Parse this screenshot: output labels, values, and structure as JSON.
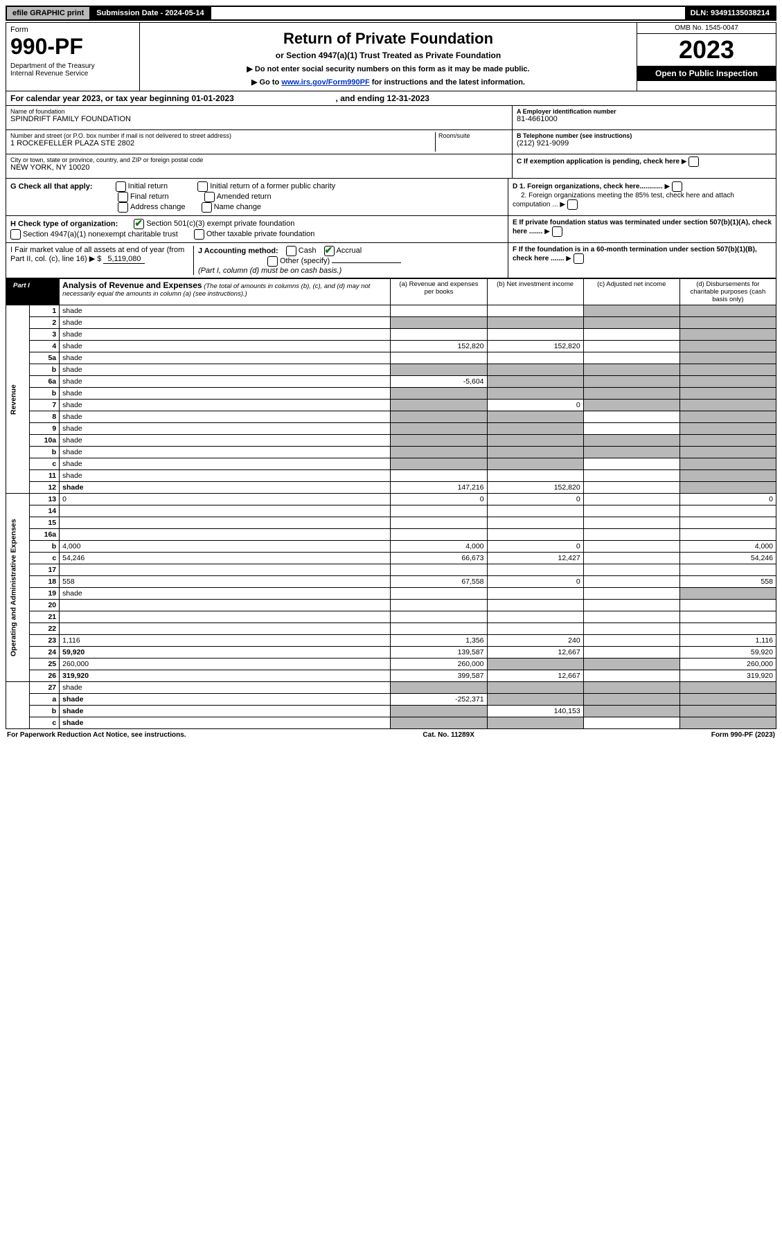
{
  "top_bar": {
    "efile": "efile GRAPHIC print",
    "sub_date_label": "Submission Date - 2024-05-14",
    "dln": "DLN: 93491135038214"
  },
  "header": {
    "form_word": "Form",
    "form_no": "990-PF",
    "dept": "Department of the Treasury\nInternal Revenue Service",
    "title": "Return of Private Foundation",
    "subtitle": "or Section 4947(a)(1) Trust Treated as Private Foundation",
    "instr1": "▶ Do not enter social security numbers on this form as it may be made public.",
    "instr2": "▶ Go to ",
    "instr_link": "www.irs.gov/Form990PF",
    "instr3": " for instructions and the latest information.",
    "omb": "OMB No. 1545-0047",
    "year": "2023",
    "inspect": "Open to Public Inspection"
  },
  "calendar": {
    "text_a": "For calendar year 2023, or tax year beginning ",
    "begin": "01-01-2023",
    "text_b": ", and ending ",
    "end": "12-31-2023"
  },
  "info": {
    "name_label": "Name of foundation",
    "name": "SPINDRIFT FAMILY FOUNDATION",
    "addr_label": "Number and street (or P.O. box number if mail is not delivered to street address)",
    "addr": "1 ROCKEFELLER PLAZA STE 2802",
    "room_label": "Room/suite",
    "city_label": "City or town, state or province, country, and ZIP or foreign postal code",
    "city": "NEW YORK, NY  10020",
    "ein_label": "A Employer identification number",
    "ein": "81-4661000",
    "tel_label": "B Telephone number (see instructions)",
    "tel": "(212) 921-9099",
    "c_label": "C If exemption application is pending, check here",
    "d1": "D 1. Foreign organizations, check here............",
    "d2": "2. Foreign organizations meeting the 85% test, check here and attach computation ...",
    "e_label": "E  If private foundation status was terminated under section 507(b)(1)(A), check here .......",
    "f_label": "F  If the foundation is in a 60-month termination under section 507(b)(1)(B), check here ......."
  },
  "g_row": {
    "label": "G Check all that apply:",
    "opts": [
      "Initial return",
      "Final return",
      "Address change",
      "Initial return of a former public charity",
      "Amended return",
      "Name change"
    ]
  },
  "h_row": {
    "label": "H Check type of organization:",
    "opt1": "Section 501(c)(3) exempt private foundation",
    "opt2": "Section 4947(a)(1) nonexempt charitable trust",
    "opt3": "Other taxable private foundation"
  },
  "i_row": {
    "label": "I Fair market value of all assets at end of year (from Part II, col. (c), line 16) ▶ $",
    "value": "5,119,080"
  },
  "j_row": {
    "label": "J Accounting method:",
    "cash": "Cash",
    "accrual": "Accrual",
    "other": "Other (specify)",
    "note": "(Part I, column (d) must be on cash basis.)"
  },
  "part1": {
    "tag": "Part I",
    "title": "Analysis of Revenue and Expenses",
    "note": " (The total of amounts in columns (b), (c), and (d) may not necessarily equal the amounts in column (a) (see instructions).)",
    "col_a": "(a)  Revenue and expenses per books",
    "col_b": "(b)  Net investment income",
    "col_c": "(c)  Adjusted net income",
    "col_d": "(d)  Disbursements for charitable purposes (cash basis only)"
  },
  "side_revenue": "Revenue",
  "side_expenses": "Operating and Administrative Expenses",
  "rows": [
    {
      "n": "1",
      "d": "shade",
      "a": "",
      "b": "",
      "c": "shade"
    },
    {
      "n": "2",
      "d": "shade",
      "a": "shade",
      "b": "shade",
      "c": "shade"
    },
    {
      "n": "3",
      "d": "shade",
      "a": "",
      "b": "",
      "c": ""
    },
    {
      "n": "4",
      "d": "shade",
      "a": "152,820",
      "b": "152,820",
      "c": ""
    },
    {
      "n": "5a",
      "d": "shade",
      "a": "",
      "b": "",
      "c": ""
    },
    {
      "n": "b",
      "d": "shade",
      "a": "shade",
      "b": "shade",
      "c": "shade"
    },
    {
      "n": "6a",
      "d": "shade",
      "a": "-5,604",
      "b": "shade",
      "c": "shade"
    },
    {
      "n": "b",
      "d": "shade",
      "a": "shade",
      "b": "shade",
      "c": "shade"
    },
    {
      "n": "7",
      "d": "shade",
      "a": "shade",
      "b": "0",
      "c": "shade"
    },
    {
      "n": "8",
      "d": "shade",
      "a": "shade",
      "b": "shade",
      "c": ""
    },
    {
      "n": "9",
      "d": "shade",
      "a": "shade",
      "b": "shade",
      "c": ""
    },
    {
      "n": "10a",
      "d": "shade",
      "a": "shade",
      "b": "shade",
      "c": "shade"
    },
    {
      "n": "b",
      "d": "shade",
      "a": "shade",
      "b": "shade",
      "c": "shade"
    },
    {
      "n": "c",
      "d": "shade",
      "a": "shade",
      "b": "shade",
      "c": ""
    },
    {
      "n": "11",
      "d": "shade",
      "a": "",
      "b": "",
      "c": ""
    },
    {
      "n": "12",
      "d": "shade",
      "a": "147,216",
      "b": "152,820",
      "c": "",
      "bold": true
    }
  ],
  "exp_rows": [
    {
      "n": "13",
      "d": "0",
      "a": "0",
      "b": "0",
      "c": ""
    },
    {
      "n": "14",
      "d": "",
      "a": "",
      "b": "",
      "c": ""
    },
    {
      "n": "15",
      "d": "",
      "a": "",
      "b": "",
      "c": ""
    },
    {
      "n": "16a",
      "d": "",
      "a": "",
      "b": "",
      "c": ""
    },
    {
      "n": "b",
      "d": "4,000",
      "a": "4,000",
      "b": "0",
      "c": ""
    },
    {
      "n": "c",
      "d": "54,246",
      "a": "66,673",
      "b": "12,427",
      "c": ""
    },
    {
      "n": "17",
      "d": "",
      "a": "",
      "b": "",
      "c": ""
    },
    {
      "n": "18",
      "d": "558",
      "a": "67,558",
      "b": "0",
      "c": ""
    },
    {
      "n": "19",
      "d": "shade",
      "a": "",
      "b": "",
      "c": ""
    },
    {
      "n": "20",
      "d": "",
      "a": "",
      "b": "",
      "c": ""
    },
    {
      "n": "21",
      "d": "",
      "a": "",
      "b": "",
      "c": ""
    },
    {
      "n": "22",
      "d": "",
      "a": "",
      "b": "",
      "c": ""
    },
    {
      "n": "23",
      "d": "1,116",
      "a": "1,356",
      "b": "240",
      "c": ""
    },
    {
      "n": "24",
      "d": "59,920",
      "a": "139,587",
      "b": "12,667",
      "c": "",
      "bold": true
    },
    {
      "n": "25",
      "d": "260,000",
      "a": "260,000",
      "b": "shade",
      "c": "shade"
    },
    {
      "n": "26",
      "d": "319,920",
      "a": "399,587",
      "b": "12,667",
      "c": "",
      "bold": true
    }
  ],
  "final_rows": [
    {
      "n": "27",
      "d": "shade",
      "a": "shade",
      "b": "shade",
      "c": "shade"
    },
    {
      "n": "a",
      "d": "shade",
      "a": "-252,371",
      "b": "shade",
      "c": "shade",
      "bold": true
    },
    {
      "n": "b",
      "d": "shade",
      "a": "shade",
      "b": "140,153",
      "c": "shade",
      "bold": true
    },
    {
      "n": "c",
      "d": "shade",
      "a": "shade",
      "b": "shade",
      "c": "",
      "bold": true
    }
  ],
  "footer": {
    "left": "For Paperwork Reduction Act Notice, see instructions.",
    "mid": "Cat. No. 11289X",
    "right": "Form 990-PF (2023)"
  }
}
